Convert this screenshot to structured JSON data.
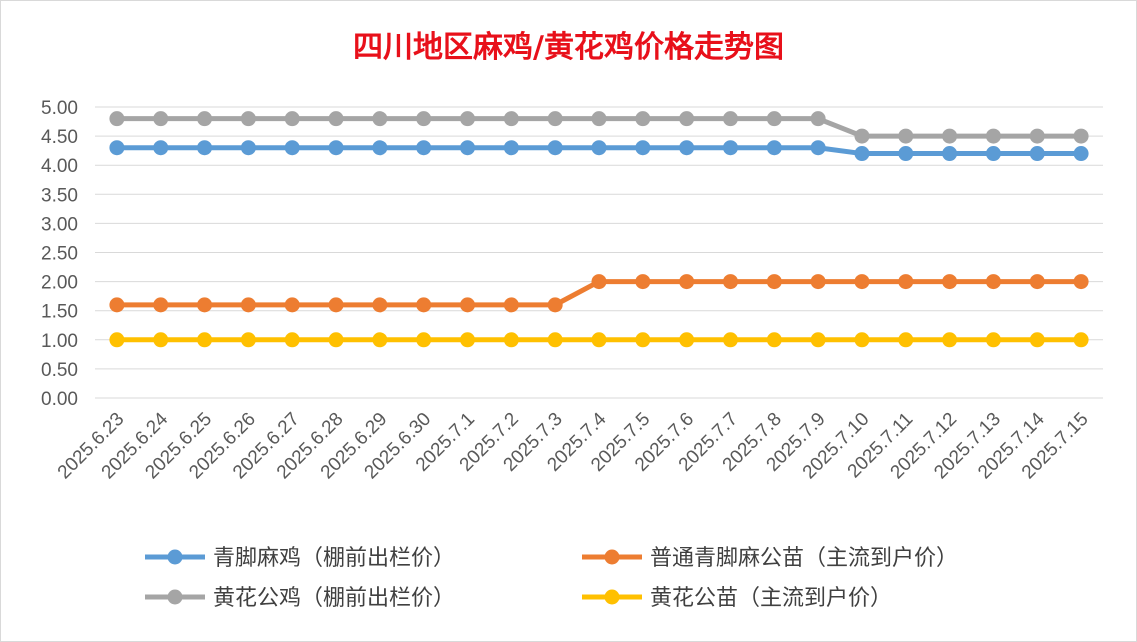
{
  "chart_data": {
    "type": "line",
    "title": "四川地区麻鸡/黄花鸡价格走势图",
    "ylim": [
      0,
      5
    ],
    "yticks": [
      "0.00",
      "0.50",
      "1.00",
      "1.50",
      "2.00",
      "2.50",
      "3.00",
      "3.50",
      "4.00",
      "4.50",
      "5.00"
    ],
    "grid": true,
    "legend_position": "bottom",
    "categories": [
      "2025.6.23",
      "2025.6.24",
      "2025.6.25",
      "2025.6.26",
      "2025.6.27",
      "2025.6.28",
      "2025.6.29",
      "2025.6.30",
      "2025.7.1",
      "2025.7.2",
      "2025.7.3",
      "2025.7.4",
      "2025.7.5",
      "2025.7.6",
      "2025.7.7",
      "2025.7.8",
      "2025.7.9",
      "2025.7.10",
      "2025.7.11",
      "2025.7.12",
      "2025.7.13",
      "2025.7.14",
      "2025.7.15"
    ],
    "series": [
      {
        "name": "青脚麻鸡（棚前出栏价）",
        "color": "#5b9bd5",
        "values": [
          4.3,
          4.3,
          4.3,
          4.3,
          4.3,
          4.3,
          4.3,
          4.3,
          4.3,
          4.3,
          4.3,
          4.3,
          4.3,
          4.3,
          4.3,
          4.3,
          4.3,
          4.2,
          4.2,
          4.2,
          4.2,
          4.2,
          4.2
        ]
      },
      {
        "name": "普通青脚麻公苗（主流到户价）",
        "color": "#ed7d31",
        "values": [
          1.6,
          1.6,
          1.6,
          1.6,
          1.6,
          1.6,
          1.6,
          1.6,
          1.6,
          1.6,
          1.6,
          2.0,
          2.0,
          2.0,
          2.0,
          2.0,
          2.0,
          2.0,
          2.0,
          2.0,
          2.0,
          2.0,
          2.0
        ]
      },
      {
        "name": "黄花公鸡（棚前出栏价）",
        "color": "#a5a5a5",
        "values": [
          4.8,
          4.8,
          4.8,
          4.8,
          4.8,
          4.8,
          4.8,
          4.8,
          4.8,
          4.8,
          4.8,
          4.8,
          4.8,
          4.8,
          4.8,
          4.8,
          4.8,
          4.5,
          4.5,
          4.5,
          4.5,
          4.5,
          4.5
        ]
      },
      {
        "name": "黄花公苗（主流到户价）",
        "color": "#ffc000",
        "values": [
          1.0,
          1.0,
          1.0,
          1.0,
          1.0,
          1.0,
          1.0,
          1.0,
          1.0,
          1.0,
          1.0,
          1.0,
          1.0,
          1.0,
          1.0,
          1.0,
          1.0,
          1.0,
          1.0,
          1.0,
          1.0,
          1.0,
          1.0
        ]
      }
    ]
  }
}
